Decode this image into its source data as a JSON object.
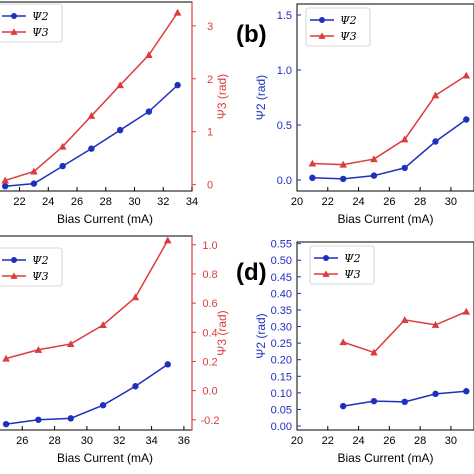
{
  "colors": {
    "psi2": "#1f2fbf",
    "psi3": "#dc3c3c",
    "axis": "#000000"
  },
  "chart_data": [
    {
      "panel": "a",
      "type": "line",
      "xlabel": "Bias Current (mA)",
      "ylabel_right": "Ψ3 (rad)",
      "x_ticks": [
        "22",
        "24",
        "26",
        "28",
        "30",
        "32",
        "34"
      ],
      "right_ticks": [
        "0",
        "1",
        "2",
        "3"
      ],
      "legend": [
        "Ψ2",
        "Ψ3"
      ],
      "xlim": [
        20.5,
        34
      ],
      "right_ylim": [
        -0.12,
        3.45
      ],
      "series": [
        {
          "name": "Ψ2",
          "axis": "right",
          "x": [
            21,
            23,
            25,
            27,
            29,
            31,
            33
          ],
          "y": [
            -0.03,
            0.02,
            0.35,
            0.68,
            1.03,
            1.38,
            1.88
          ]
        },
        {
          "name": "Ψ3",
          "axis": "right",
          "x": [
            21,
            23,
            25,
            27,
            29,
            31,
            33
          ],
          "y": [
            0.08,
            0.25,
            0.72,
            1.3,
            1.88,
            2.45,
            3.25
          ]
        }
      ]
    },
    {
      "panel": "b",
      "type": "line",
      "xlabel": "Bias Current (mA)",
      "ylabel": "Ψ2 (rad)",
      "x_ticks": [
        "20",
        "22",
        "24",
        "26",
        "28",
        "30"
      ],
      "y_ticks": [
        "0.0",
        "0.5",
        "1.0",
        "1.5"
      ],
      "legend": [
        "Ψ2",
        "Ψ3"
      ],
      "xlim": [
        20,
        31.5
      ],
      "ylim": [
        -0.1,
        1.6
      ],
      "series": [
        {
          "name": "Ψ2",
          "x": [
            21,
            23,
            25,
            27,
            29,
            31
          ],
          "y": [
            0.02,
            0.01,
            0.04,
            0.11,
            0.35,
            0.55
          ]
        },
        {
          "name": "Ψ3",
          "x": [
            21,
            23,
            25,
            27,
            29,
            31
          ],
          "y": [
            0.15,
            0.14,
            0.19,
            0.37,
            0.77,
            0.95
          ]
        }
      ]
    },
    {
      "panel": "c",
      "type": "line",
      "xlabel": "Bias Current (mA)",
      "ylabel_right": "Ψ3 (rad)",
      "x_ticks": [
        "26",
        "28",
        "30",
        "32",
        "34",
        "36"
      ],
      "right_ticks": [
        "-0.2",
        "0.0",
        "0.2",
        "0.4",
        "0.6",
        "0.8",
        "1.0"
      ],
      "legend": [
        "Ψ2",
        "Ψ3"
      ],
      "xlim": [
        24.5,
        36.5
      ],
      "right_ylim": [
        -0.27,
        1.06
      ],
      "series": [
        {
          "name": "Ψ2",
          "axis": "right",
          "x": [
            25,
            27,
            29,
            31,
            33,
            35
          ],
          "y": [
            -0.23,
            -0.2,
            -0.19,
            -0.1,
            0.03,
            0.18
          ]
        },
        {
          "name": "Ψ3",
          "axis": "right",
          "x": [
            25,
            27,
            29,
            31,
            33,
            35
          ],
          "y": [
            0.22,
            0.28,
            0.32,
            0.45,
            0.64,
            1.03
          ]
        }
      ]
    },
    {
      "panel": "d",
      "type": "line",
      "xlabel": "Bias Current (mA)",
      "ylabel": "Ψ2 (rad)",
      "x_ticks": [
        "20",
        "22",
        "24",
        "26",
        "28",
        "30"
      ],
      "y_ticks": [
        "0.00",
        "0.05",
        "0.10",
        "0.15",
        "0.20",
        "0.25",
        "0.30",
        "0.35",
        "0.40",
        "0.45",
        "0.50",
        "0.55"
      ],
      "legend": [
        "Ψ2",
        "Ψ3"
      ],
      "xlim": [
        20,
        31.5
      ],
      "ylim": [
        -0.012,
        0.555
      ],
      "series": [
        {
          "name": "Ψ2",
          "x": [
            23,
            25,
            27,
            29,
            31
          ],
          "y": [
            0.06,
            0.075,
            0.073,
            0.097,
            0.105
          ]
        },
        {
          "name": "Ψ3",
          "x": [
            23,
            25,
            27,
            29,
            31
          ],
          "y": [
            0.253,
            0.222,
            0.32,
            0.305,
            0.345
          ]
        }
      ]
    }
  ],
  "panel_labels": {
    "b": "(b)",
    "d": "(d)"
  }
}
